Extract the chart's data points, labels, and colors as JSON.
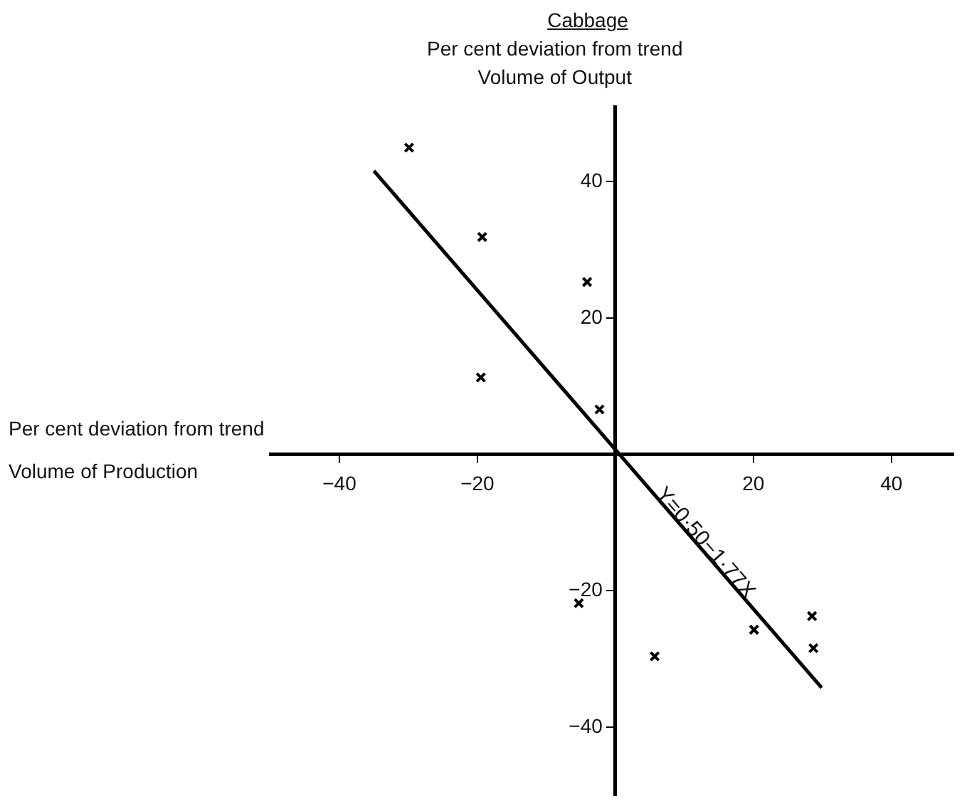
{
  "chart_data": {
    "type": "scatter",
    "title": "Cabbage",
    "ylabel": "Per cent deviation from trend\nVolume of Output",
    "xlabel": "Per cent deviation from trend\nVolume of Production",
    "x": [
      -29.9,
      -19.3,
      -4.1,
      -19.5,
      -2.3,
      -5.3,
      5.7,
      20.1,
      28.5,
      28.7
    ],
    "series": [
      {
        "color": "#000000",
        "values": [
          45,
          31.9,
          25.3,
          11.3,
          6.6,
          -21.8,
          -29.6,
          -25.7,
          -23.7,
          -28.4
        ]
      },
      {
        "type": "line",
        "marker": "none",
        "color": "#000000",
        "x": [
          -35,
          29.9
        ],
        "values": [
          41.6,
          -34.2
        ]
      }
    ],
    "annotations": [
      {
        "text": "Y=0·50−1·77X",
        "x": 13,
        "y": -13
      }
    ],
    "xlim": [
      -50,
      49
    ],
    "ylim": [
      -50,
      51
    ],
    "xticks": [
      -40,
      -20,
      20,
      40
    ],
    "yticks": [
      40,
      20,
      -20,
      -40
    ],
    "marker": "cross",
    "grid": false,
    "legend": false
  }
}
